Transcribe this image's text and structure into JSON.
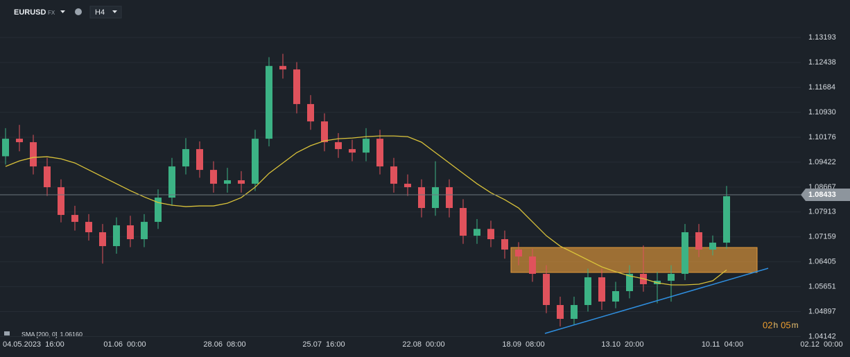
{
  "header": {
    "symbol": "EURUSD",
    "market": "FX",
    "timeframe": "H4"
  },
  "chart_data": {
    "type": "candlestick",
    "ylim": [
      1.0409,
      1.1433
    ],
    "yticks": [
      1.13193,
      1.12438,
      1.11684,
      {
        "value": 1.1093,
        "label": "1.10930"
      },
      1.10176,
      1.09422,
      1.08667,
      1.07913,
      1.07159,
      1.06405,
      1.05651,
      1.04897,
      1.04142
    ],
    "grid": true,
    "x_labels": [
      "04.05.2023  16:00",
      "01.06  00:00",
      "28.06  08:00",
      "25.07  16:00",
      "22.08  00:00",
      "18.09  08:00",
      "13.10  20:00",
      "10.11  04:00",
      "02.12  00:00"
    ],
    "up_color": "#3cb385",
    "down_color": "#e0525c",
    "open": [
      1.096,
      1.10131,
      1.10026,
      1.09292,
      1.08663,
      1.07824,
      1.07614,
      1.073,
      1.0688,
      1.07509,
      1.0709,
      1.07614,
      1.08348,
      1.09292,
      1.09816,
      1.09187,
      1.08768,
      1.08873,
      1.08768,
      1.10131,
      1.12333,
      1.12228,
      1.1118,
      1.10655,
      1.10026,
      1.09816,
      1.09711,
      1.10131,
      1.09292,
      1.08768,
      1.08663,
      1.08034,
      1.08663,
      1.08034,
      1.07195,
      1.074,
      1.0709,
      1.06775,
      1.06566,
      1.06041,
      1.05097,
      1.04678,
      1.05097,
      1.05936,
      1.05202,
      1.05517,
      1.06041,
      1.05727,
      1.05831,
      1.06041,
      1.073,
      1.06775,
      1.06985
    ],
    "high": [
      1.1045,
      1.1055,
      1.1025,
      1.0955,
      1.089,
      1.081,
      1.0785,
      1.0755,
      1.0775,
      1.078,
      1.0785,
      1.086,
      1.0955,
      1.1015,
      1.1005,
      1.0945,
      1.0925,
      1.0915,
      1.104,
      1.126,
      1.127,
      1.1245,
      1.1145,
      1.109,
      1.103,
      1.101,
      1.1045,
      1.104,
      1.0955,
      1.0905,
      1.089,
      1.0945,
      1.089,
      1.083,
      1.077,
      1.0765,
      1.0735,
      1.07,
      1.068,
      1.063,
      1.0535,
      1.0535,
      1.062,
      1.062,
      1.058,
      1.063,
      1.069,
      1.061,
      1.063,
      1.0755,
      1.0755,
      1.072,
      1.087
    ],
    "low": [
      1.0935,
      1.0975,
      1.0905,
      1.084,
      1.076,
      1.0735,
      1.0705,
      1.0635,
      1.0665,
      1.0685,
      1.0685,
      1.074,
      1.081,
      1.0905,
      1.0895,
      1.085,
      1.085,
      1.085,
      1.0855,
      1.099,
      1.1195,
      1.109,
      1.104,
      1.0975,
      1.0955,
      1.0945,
      1.0945,
      1.0905,
      1.085,
      1.084,
      1.0775,
      1.078,
      1.0775,
      1.0695,
      1.0695,
      1.0685,
      1.065,
      1.063,
      1.058,
      1.0485,
      1.0445,
      1.045,
      1.049,
      1.0495,
      1.05,
      1.053,
      1.055,
      1.0515,
      1.052,
      1.0585,
      1.0655,
      1.066,
      1.068
    ],
    "close": [
      1.10131,
      1.10026,
      1.09292,
      1.08663,
      1.07824,
      1.07614,
      1.073,
      1.0688,
      1.07509,
      1.0709,
      1.07614,
      1.08348,
      1.09292,
      1.09816,
      1.09187,
      1.08768,
      1.08873,
      1.08768,
      1.10131,
      1.12333,
      1.12228,
      1.1118,
      1.10655,
      1.10026,
      1.09816,
      1.09711,
      1.10131,
      1.09292,
      1.08768,
      1.08663,
      1.08034,
      1.08663,
      1.08034,
      1.07195,
      1.074,
      1.0709,
      1.06775,
      1.06566,
      1.06041,
      1.05097,
      1.04678,
      1.05097,
      1.05936,
      1.05202,
      1.05517,
      1.06041,
      1.05727,
      1.05831,
      1.06041,
      1.073,
      1.06775,
      1.06985,
      1.0839
    ],
    "sma": {
      "name": "SMA [200, 0]",
      "color": "#d9c23a",
      "last": {
        "value": 1.0616,
        "label": "1.06160"
      },
      "values": [
        1.09292,
        1.0946,
        1.09565,
        1.09586,
        1.09523,
        1.09397,
        1.09187,
        1.08977,
        1.08768,
        1.08558,
        1.08369,
        1.08201,
        1.08118,
        1.08076,
        1.08097,
        1.08097,
        1.0818,
        1.08348,
        1.08663,
        1.09082,
        1.09397,
        1.09711,
        1.09921,
        1.10068,
        1.10131,
        1.10152,
        1.10194,
        1.10215,
        1.10215,
        1.10194,
        1.10026,
        1.09711,
        1.09397,
        1.09082,
        1.08768,
        1.08495,
        1.08285,
        1.08034,
        1.07614,
        1.07195,
        1.0688,
        1.06671,
        1.06461,
        1.06251,
        1.06104,
        1.05978,
        1.05895,
        1.05769,
        1.05706,
        1.05706,
        1.05727,
        1.05831,
        1.0616
      ]
    },
    "current_price": 1.08433,
    "zone": {
      "low": 1.06083,
      "high": 1.06838,
      "color": "#e39a3b"
    },
    "trendline": {
      "start": 1.04237,
      "end": 1.06209,
      "color": "#2f8fe0"
    },
    "countdown": [
      "02",
      "h",
      "05",
      "m"
    ]
  }
}
